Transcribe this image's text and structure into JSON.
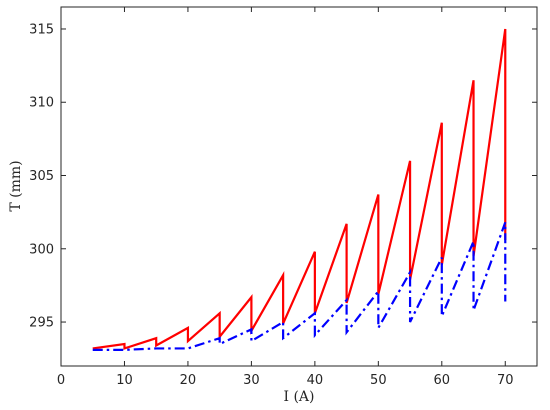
{
  "chart_data": {
    "type": "line",
    "title": "",
    "xlabel": "I (A)",
    "ylabel": "T (mm)",
    "xlim": [
      0,
      75
    ],
    "ylim": [
      292,
      316.5
    ],
    "xticks": [
      0,
      10,
      20,
      30,
      40,
      50,
      60,
      70
    ],
    "yticks": [
      295,
      300,
      305,
      310,
      315
    ],
    "grid": false,
    "legend": "none",
    "series": [
      {
        "color": "#ff0000",
        "style": "solid",
        "points": [
          [
            5,
            293.2
          ],
          [
            10,
            293.5
          ],
          [
            10,
            293.2
          ],
          [
            15,
            293.9
          ],
          [
            15,
            293.4
          ],
          [
            20,
            294.6
          ],
          [
            20,
            293.7
          ],
          [
            25,
            295.6
          ],
          [
            25,
            294.0
          ],
          [
            30,
            296.7
          ],
          [
            30,
            294.4
          ],
          [
            35,
            298.2
          ],
          [
            35,
            294.9
          ],
          [
            40,
            299.8
          ],
          [
            40,
            295.6
          ],
          [
            45,
            301.7
          ],
          [
            45,
            296.3
          ],
          [
            50,
            303.7
          ],
          [
            50,
            296.9
          ],
          [
            55,
            306.0
          ],
          [
            55,
            297.9
          ],
          [
            60,
            308.6
          ],
          [
            60,
            298.9
          ],
          [
            65,
            311.5
          ],
          [
            65,
            299.5
          ],
          [
            70,
            315.0
          ],
          [
            70,
            300.6
          ]
        ]
      },
      {
        "color": "#0000ff",
        "style": "dashdot",
        "points": [
          [
            5,
            293.1
          ],
          [
            10,
            293.1
          ],
          [
            15,
            293.2
          ],
          [
            20,
            293.2
          ],
          [
            25,
            293.9
          ],
          [
            25,
            293.5
          ],
          [
            30,
            294.5
          ],
          [
            30,
            293.7
          ],
          [
            35,
            295.0
          ],
          [
            35,
            293.9
          ],
          [
            40,
            295.6
          ],
          [
            40,
            294.1
          ],
          [
            45,
            296.5
          ],
          [
            45,
            294.3
          ],
          [
            50,
            297.1
          ],
          [
            50,
            294.6
          ],
          [
            55,
            298.4
          ],
          [
            55,
            295.0
          ],
          [
            60,
            299.4
          ],
          [
            60,
            295.4
          ],
          [
            65,
            300.5
          ],
          [
            65,
            295.8
          ],
          [
            70,
            301.8
          ],
          [
            70,
            296.4
          ]
        ]
      }
    ]
  }
}
